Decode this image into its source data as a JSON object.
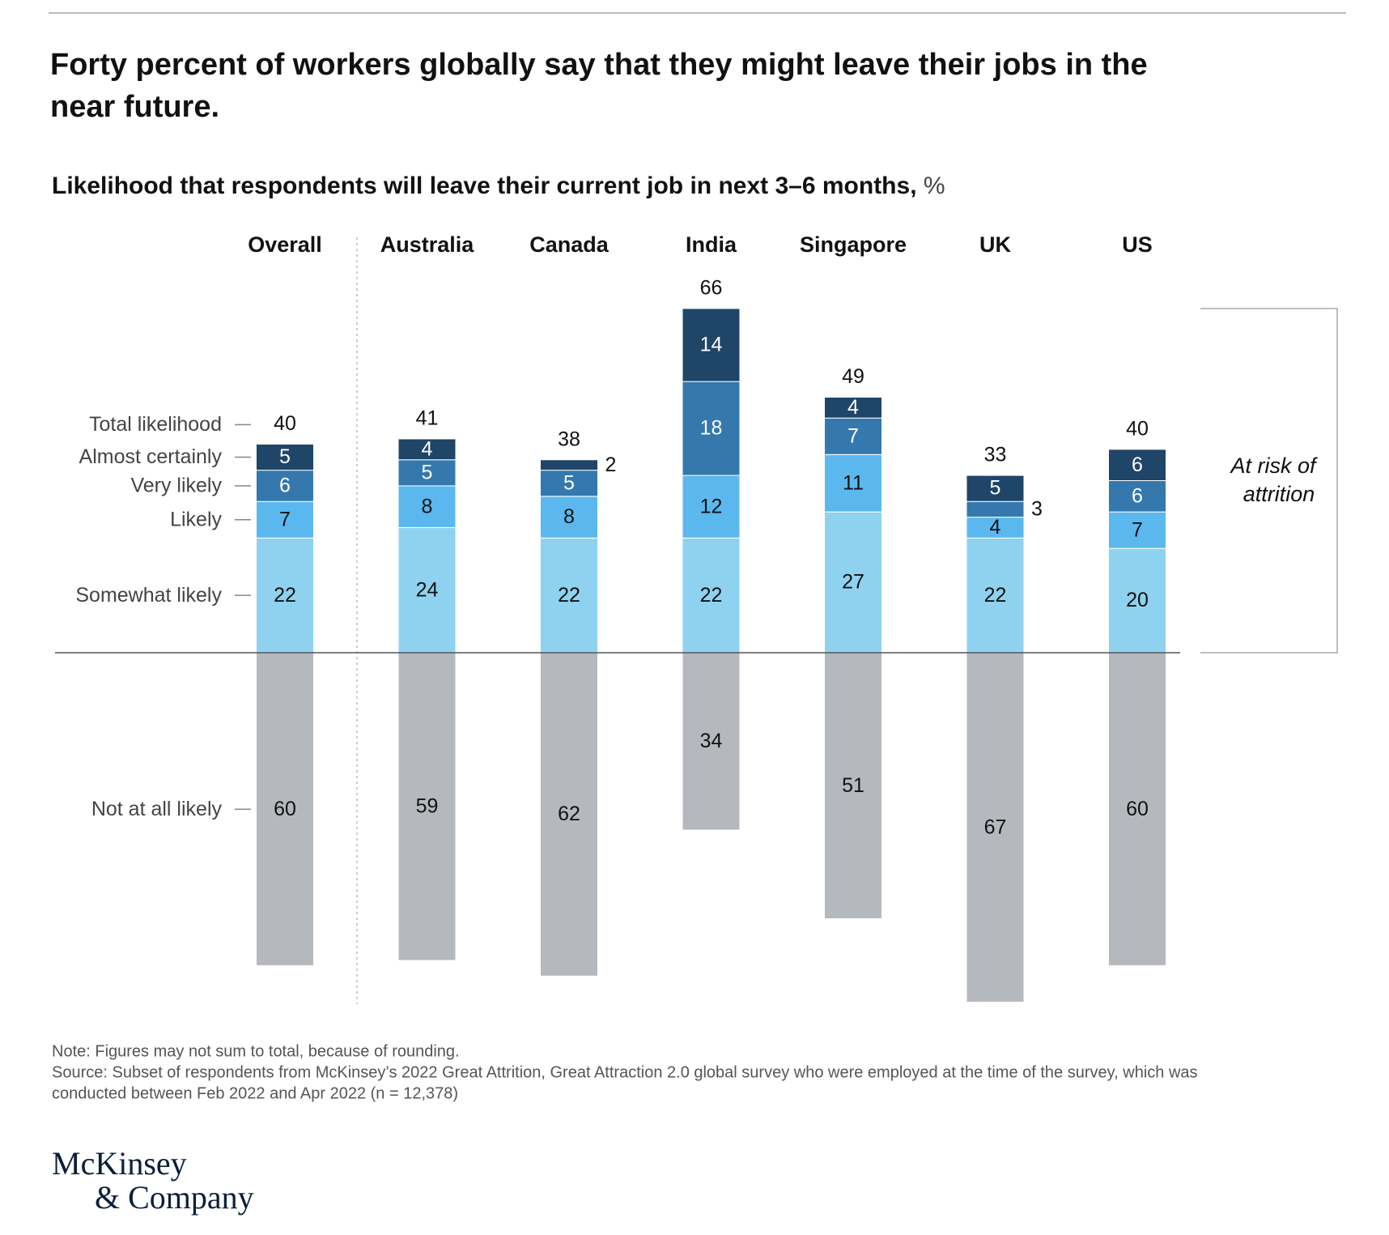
{
  "chart_data": {
    "type": "diverging-stacked-bar",
    "title": [
      "Forty percent of workers globally say that they might leave their jobs in the",
      "near future."
    ],
    "subtitle": "Likelihood that respondents will leave their current job in next 3–6 months,",
    "unit": "%",
    "categories": [
      "Overall",
      "Australia",
      "Canada",
      "India",
      "Singapore",
      "UK",
      "US"
    ],
    "series": [
      {
        "name": "Somewhat likely",
        "color": "#8ed2ef",
        "label_color": "#111111",
        "side": "up",
        "values": [
          22,
          24,
          22,
          22,
          27,
          22,
          20
        ]
      },
      {
        "name": "Likely",
        "color": "#5bb8ef",
        "label_color": "#111111",
        "side": "up",
        "values": [
          7,
          8,
          8,
          12,
          11,
          4,
          7
        ]
      },
      {
        "name": "Very likely",
        "color": "#3478ae",
        "label_color": "#ffffff",
        "side": "up",
        "values": [
          6,
          5,
          5,
          18,
          7,
          3,
          6
        ]
      },
      {
        "name": "Almost certainly",
        "color": "#1f4568",
        "label_color": "#ffffff",
        "side": "up",
        "values": [
          5,
          4,
          2,
          14,
          4,
          5,
          6
        ]
      },
      {
        "name": "Not at all likely",
        "color": "#b5b9be",
        "label_color": "#111111",
        "side": "down",
        "values": [
          60,
          59,
          62,
          34,
          51,
          67,
          60
        ]
      }
    ],
    "totals": {
      "name": "Total likelihood",
      "values": [
        40,
        41,
        38,
        66,
        49,
        33,
        40
      ]
    },
    "annotation": [
      "At risk of",
      "attrition"
    ],
    "note": "Note: Figures may not sum to total, because of rounding.",
    "source": [
      "Source: Subset of respondents from McKinsey’s 2022 Great Attrition, Great Attraction 2.0 global survey who were employed at the time of the survey, which was",
      "conducted between Feb 2022 and Apr 2022 (n = 12,378)"
    ],
    "logo": [
      "McKinsey",
      "& Company"
    ]
  }
}
